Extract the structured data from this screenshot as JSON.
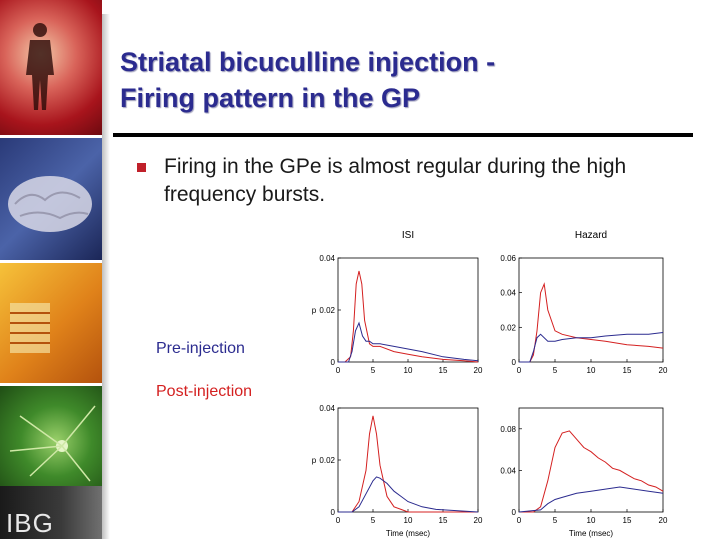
{
  "slide": {
    "title_line1": "Striatal bicuculline injection -",
    "title_line2": "Firing pattern in the GP",
    "bullet": "Firing in the GPe is almost regular during the high frequency bursts.",
    "pre_label": "Pre-injection",
    "post_label": "Post-injection",
    "logo": "IBG",
    "colors": {
      "title": "#2b2b8f",
      "pre": "#2b2b8f",
      "post": "#d42020",
      "bullet": "#c0202a"
    }
  },
  "chart_data": [
    {
      "type": "line",
      "title": "ISI",
      "ylabel": "p",
      "xlabel": "",
      "xlim": [
        0,
        20
      ],
      "ylim": [
        0,
        0.04
      ],
      "xticks": [
        "0",
        "5",
        "10",
        "15",
        "20"
      ],
      "yticks": [
        "0",
        "0.02",
        "0.04"
      ],
      "series": [
        {
          "color": "#d42020",
          "x": [
            0,
            1,
            1.8,
            2.2,
            2.6,
            3,
            3.4,
            3.8,
            4.5,
            5,
            6,
            8,
            10,
            12,
            15,
            18,
            20
          ],
          "y": [
            0,
            0,
            0.002,
            0.012,
            0.03,
            0.035,
            0.03,
            0.016,
            0.007,
            0.006,
            0.006,
            0.004,
            0.003,
            0.002,
            0.001,
            0.0005,
            0
          ]
        },
        {
          "color": "#2b2b8f",
          "x": [
            0,
            1.5,
            2,
            2.5,
            3,
            3.5,
            4,
            4.5,
            5,
            6,
            8,
            10,
            12,
            15,
            18,
            20
          ],
          "y": [
            0,
            0,
            0.004,
            0.012,
            0.015,
            0.01,
            0.008,
            0.008,
            0.007,
            0.007,
            0.006,
            0.005,
            0.004,
            0.002,
            0.001,
            0.0005
          ]
        }
      ]
    },
    {
      "type": "line",
      "title": "Hazard",
      "ylabel": "",
      "xlabel": "",
      "xlim": [
        0,
        20
      ],
      "ylim": [
        0,
        0.06
      ],
      "xticks": [
        "0",
        "5",
        "10",
        "15",
        "20"
      ],
      "yticks": [
        "0",
        "0.02",
        "0.04",
        "0.06"
      ],
      "series": [
        {
          "color": "#d42020",
          "x": [
            0,
            1.5,
            2,
            2.5,
            3,
            3.5,
            4,
            5,
            6,
            8,
            10,
            12,
            15,
            18,
            20
          ],
          "y": [
            0,
            0,
            0.004,
            0.018,
            0.04,
            0.045,
            0.03,
            0.018,
            0.016,
            0.014,
            0.013,
            0.012,
            0.01,
            0.009,
            0.008
          ]
        },
        {
          "color": "#2b2b8f",
          "x": [
            0,
            1.5,
            2,
            2.5,
            3,
            4,
            5,
            6,
            8,
            10,
            12,
            15,
            18,
            20
          ],
          "y": [
            0,
            0,
            0.006,
            0.014,
            0.016,
            0.012,
            0.012,
            0.013,
            0.014,
            0.014,
            0.015,
            0.016,
            0.016,
            0.017
          ]
        }
      ]
    },
    {
      "type": "line",
      "title": "",
      "ylabel": "p",
      "xlabel": "Time (msec)",
      "xlim": [
        0,
        20
      ],
      "ylim": [
        0,
        0.04
      ],
      "xticks": [
        "0",
        "5",
        "10",
        "15",
        "20"
      ],
      "yticks": [
        "0",
        "0.02",
        "0.04"
      ],
      "series": [
        {
          "color": "#d42020",
          "x": [
            0,
            2,
            3,
            4,
            4.5,
            5,
            5.5,
            6,
            7,
            8,
            9,
            10,
            12,
            20
          ],
          "y": [
            0,
            0,
            0.004,
            0.016,
            0.03,
            0.037,
            0.03,
            0.018,
            0.006,
            0.002,
            0.001,
            0,
            0,
            0
          ]
        },
        {
          "color": "#2b2b8f",
          "x": [
            0,
            2,
            3,
            4,
            5,
            5.5,
            6,
            7,
            8,
            9,
            10,
            12,
            14,
            20
          ],
          "y": [
            0,
            0,
            0.002,
            0.007,
            0.012,
            0.0135,
            0.013,
            0.011,
            0.008,
            0.006,
            0.004,
            0.002,
            0.001,
            0
          ]
        }
      ]
    },
    {
      "type": "line",
      "title": "",
      "ylabel": "",
      "xlabel": "Time (msec)",
      "xlim": [
        0,
        20
      ],
      "ylim": [
        0,
        0.1
      ],
      "xticks": [
        "0",
        "5",
        "10",
        "15",
        "20"
      ],
      "yticks": [
        "0",
        "0.04",
        "0.08"
      ],
      "series": [
        {
          "color": "#d42020",
          "x": [
            0,
            2,
            3,
            4,
            5,
            6,
            7,
            8,
            9,
            10,
            11,
            12,
            13,
            14,
            15,
            16,
            17,
            18,
            19,
            20
          ],
          "y": [
            0,
            0,
            0.005,
            0.03,
            0.062,
            0.076,
            0.078,
            0.07,
            0.062,
            0.058,
            0.052,
            0.048,
            0.042,
            0.04,
            0.036,
            0.032,
            0.03,
            0.026,
            0.024,
            0.02
          ]
        },
        {
          "color": "#2b2b8f",
          "x": [
            0,
            3,
            4,
            5,
            6,
            8,
            10,
            12,
            14,
            16,
            18,
            20
          ],
          "y": [
            0,
            0.002,
            0.008,
            0.012,
            0.014,
            0.018,
            0.02,
            0.022,
            0.024,
            0.022,
            0.02,
            0.018
          ]
        }
      ]
    }
  ]
}
